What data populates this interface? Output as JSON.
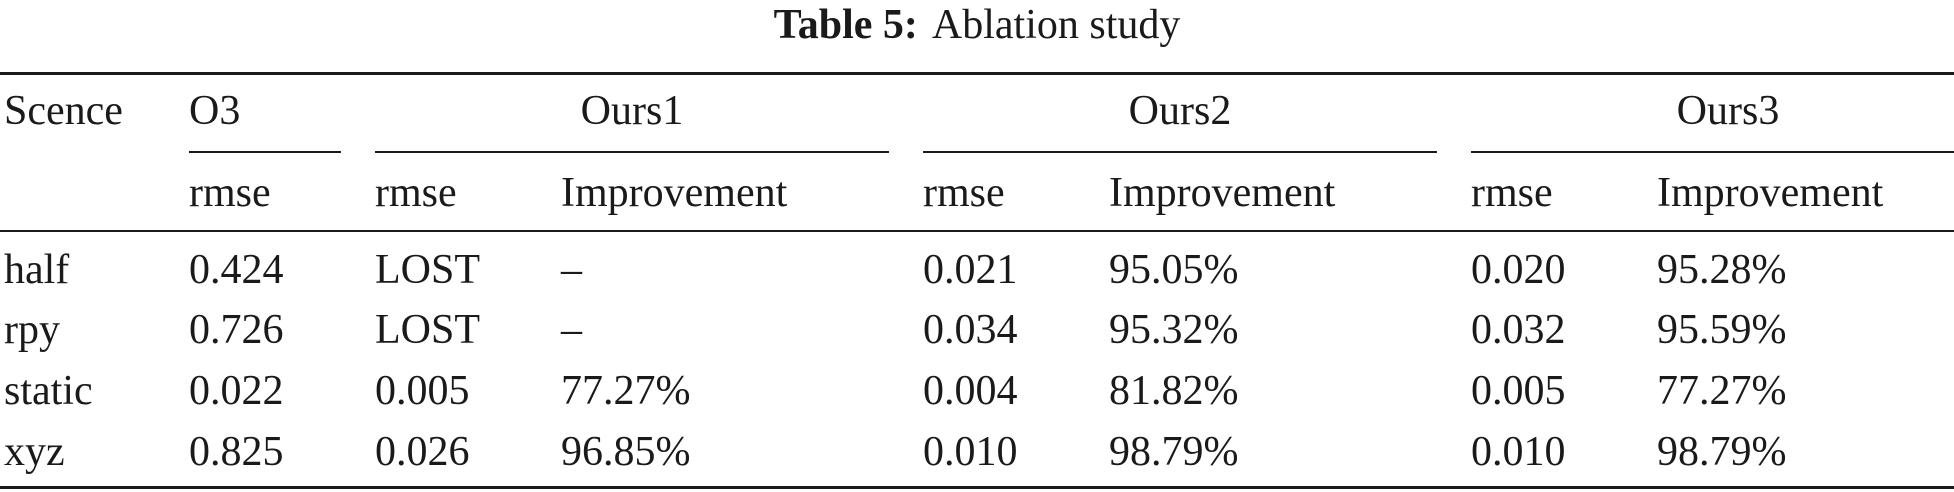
{
  "caption": {
    "label": "Table 5:",
    "text": "Ablation study"
  },
  "table": {
    "first_header": "Scence",
    "groups": [
      "O3",
      "Ours1",
      "Ours2",
      "Ours3"
    ],
    "subheaders": [
      "rmse",
      "rmse",
      "Improvement",
      "rmse",
      "Improvement",
      "rmse",
      "Improvement"
    ],
    "rows": [
      [
        "half",
        "0.424",
        "LOST",
        "–",
        "0.021",
        "95.05%",
        "0.020",
        "95.28%"
      ],
      [
        "rpy",
        "0.726",
        "LOST",
        "–",
        "0.034",
        "95.32%",
        "0.032",
        "95.59%"
      ],
      [
        "static",
        "0.022",
        "0.005",
        "77.27%",
        "0.004",
        "81.82%",
        "0.005",
        "77.27%"
      ],
      [
        "xyz",
        "0.825",
        "0.026",
        "96.85%",
        "0.010",
        "98.79%",
        "0.010",
        "98.79%"
      ]
    ]
  }
}
